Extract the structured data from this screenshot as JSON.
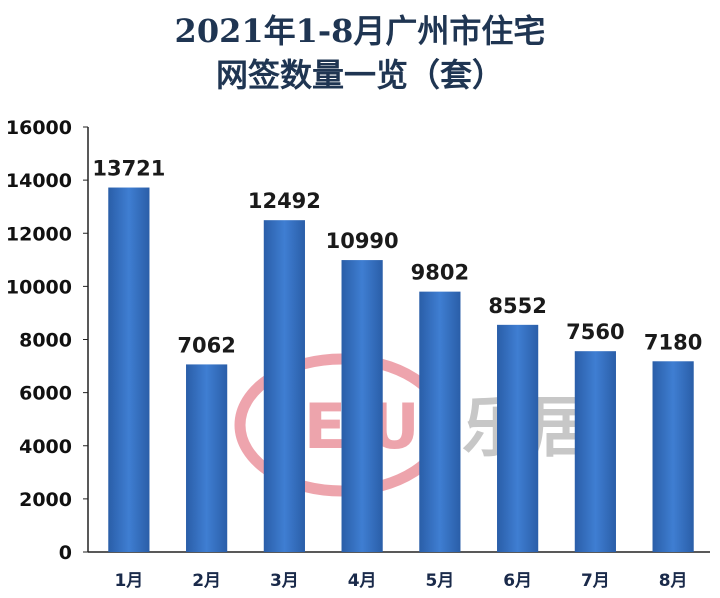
{
  "chart_data": {
    "type": "bar",
    "title_lines": [
      "2021年1-8月广州市住宅",
      "网签数量一览（套）"
    ],
    "categories": [
      "1月",
      "2月",
      "3月",
      "4月",
      "5月",
      "6月",
      "7月",
      "8月"
    ],
    "values": [
      13721,
      7062,
      12492,
      10990,
      9802,
      8552,
      7560,
      7180
    ],
    "ylim": [
      0,
      16000
    ],
    "yticks": [
      0,
      2000,
      4000,
      6000,
      8000,
      10000,
      12000,
      14000,
      16000
    ],
    "grid": false,
    "legend": "none",
    "bar_color": "#3f7ed2",
    "bar_color_dark": "#2a5ea8"
  },
  "watermark": {
    "brand_en": "LEJU",
    "brand_cn": "乐居",
    "color": "#e05a6a"
  }
}
